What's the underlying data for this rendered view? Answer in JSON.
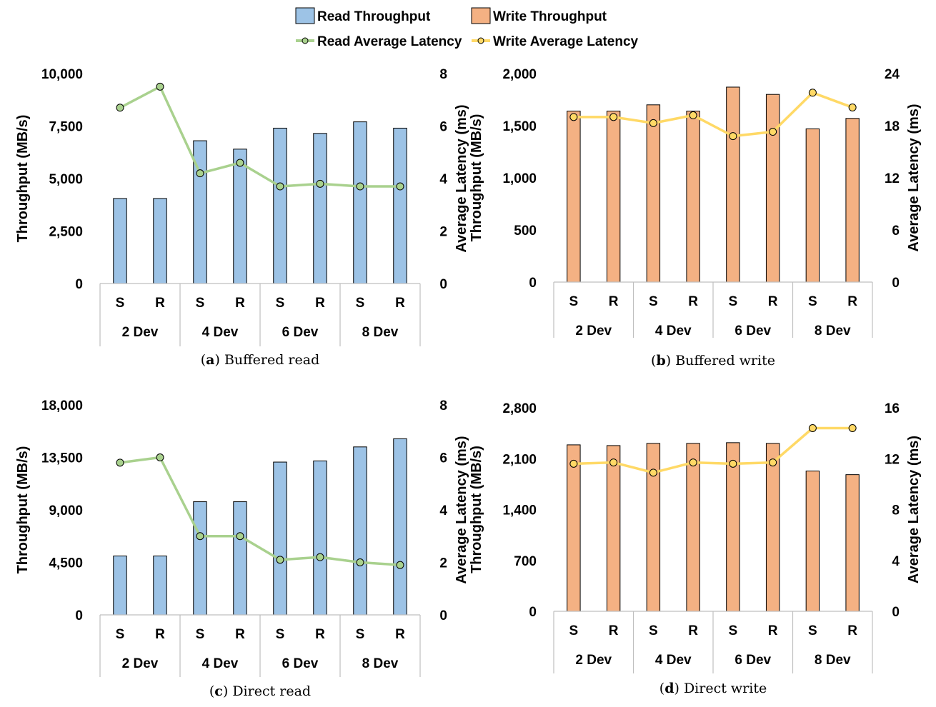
{
  "legend": {
    "read_throughput": "Read Throughput",
    "write_throughput": "Write Throughput",
    "read_latency": "Read Average Latency",
    "write_latency": "Write Average Latency"
  },
  "colors": {
    "read_bar": "#9dc3e6",
    "write_bar": "#f4b183",
    "read_line": "#a9d18e",
    "write_line": "#ffd966",
    "bar_stroke": "#000000",
    "axis": "#bfbfbf"
  },
  "chart_data": [
    {
      "id": "a",
      "type": "bar",
      "caption_label": "a",
      "caption_text": "Buffered read",
      "series_type": "read",
      "groups": [
        "2 Dev",
        "4 Dev",
        "6 Dev",
        "8 Dev"
      ],
      "subcategories": [
        "S",
        "R"
      ],
      "ylabel": "Throughput (MB/s)",
      "y2label": "Average Latency  (ms)",
      "ylim": [
        0,
        10000
      ],
      "yticks": [
        0,
        2500,
        5000,
        7500,
        10000
      ],
      "ytick_labels": [
        "0",
        "2,500",
        "5,000",
        "7,500",
        "10,000"
      ],
      "y2lim": [
        0,
        8
      ],
      "y2ticks": [
        0,
        2,
        4,
        6,
        8
      ],
      "y2tick_labels": [
        "0",
        "2",
        "4",
        "6",
        "8"
      ],
      "series": [
        {
          "name": "Read Throughput",
          "axis": "left",
          "values": [
            4050,
            4050,
            6800,
            6400,
            7400,
            7150,
            7700,
            7400
          ]
        },
        {
          "name": "Read Average Latency",
          "axis": "right",
          "values": [
            6.7,
            7.5,
            4.2,
            4.6,
            3.7,
            3.8,
            3.7,
            3.7
          ]
        }
      ]
    },
    {
      "id": "b",
      "type": "bar",
      "caption_label": "b",
      "caption_text": "Buffered write",
      "series_type": "write",
      "groups": [
        "2 Dev",
        "4 Dev",
        "6 Dev",
        "8 Dev"
      ],
      "subcategories": [
        "S",
        "R"
      ],
      "ylabel": "Throughput (MB/s)",
      "y2label": "Average Latency  (ms)",
      "ylim": [
        0,
        2000
      ],
      "yticks": [
        0,
        500,
        1000,
        1500,
        2000
      ],
      "ytick_labels": [
        "0",
        "500",
        "1,000",
        "1,500",
        "2,000"
      ],
      "y2lim": [
        0,
        24
      ],
      "y2ticks": [
        0,
        6,
        12,
        18,
        24
      ],
      "y2tick_labels": [
        "0",
        "6",
        "12",
        "18",
        "24"
      ],
      "series": [
        {
          "name": "Write Throughput",
          "axis": "left",
          "values": [
            1640,
            1640,
            1700,
            1640,
            1870,
            1800,
            1470,
            1570
          ]
        },
        {
          "name": "Write Average Latency",
          "axis": "right",
          "values": [
            19.0,
            19.0,
            18.3,
            19.2,
            16.8,
            17.3,
            21.8,
            20.1
          ]
        }
      ]
    },
    {
      "id": "c",
      "type": "bar",
      "caption_label": "c",
      "caption_text": "Direct read",
      "series_type": "read",
      "groups": [
        "2 Dev",
        "4 Dev",
        "6 Dev",
        "8 Dev"
      ],
      "subcategories": [
        "S",
        "R"
      ],
      "ylabel": "Throughput (MB/s)",
      "y2label": "Average Latency  (ms)",
      "ylim": [
        0,
        18000
      ],
      "yticks": [
        0,
        4500,
        9000,
        13500,
        18000
      ],
      "ytick_labels": [
        "0",
        "4,500",
        "9,000",
        "13,500",
        "18,000"
      ],
      "y2lim": [
        0,
        8
      ],
      "y2ticks": [
        0,
        2,
        4,
        6,
        8
      ],
      "y2tick_labels": [
        "0",
        "2",
        "4",
        "6",
        "8"
      ],
      "series": [
        {
          "name": "Read Throughput",
          "axis": "left",
          "values": [
            5050,
            5050,
            9700,
            9700,
            13100,
            13200,
            14400,
            15100
          ]
        },
        {
          "name": "Read Average Latency",
          "axis": "right",
          "values": [
            5.8,
            6.0,
            3.0,
            3.0,
            2.1,
            2.2,
            2.0,
            1.9
          ]
        }
      ]
    },
    {
      "id": "d",
      "type": "bar",
      "caption_label": "d",
      "caption_text": "Direct write",
      "series_type": "write",
      "groups": [
        "2 Dev",
        "4 Dev",
        "6 Dev",
        "8 Dev"
      ],
      "subcategories": [
        "S",
        "R"
      ],
      "ylabel": "Throughput (MB/s)",
      "y2label": "Average Latency  (ms)",
      "ylim": [
        0,
        2800
      ],
      "yticks": [
        0,
        700,
        1400,
        2100,
        2800
      ],
      "ytick_labels": [
        "0",
        "700",
        "1,400",
        "2,100",
        "2,800"
      ],
      "y2lim": [
        0,
        16
      ],
      "y2ticks": [
        0,
        4,
        8,
        12,
        16
      ],
      "y2tick_labels": [
        "0",
        "4",
        "8",
        "12",
        "16"
      ],
      "series": [
        {
          "name": "Write Throughput",
          "axis": "left",
          "values": [
            2290,
            2280,
            2310,
            2310,
            2320,
            2310,
            1930,
            1880
          ]
        },
        {
          "name": "Write Average Latency",
          "axis": "right",
          "values": [
            11.6,
            11.7,
            10.9,
            11.7,
            11.6,
            11.7,
            14.4,
            14.4
          ]
        }
      ]
    }
  ]
}
